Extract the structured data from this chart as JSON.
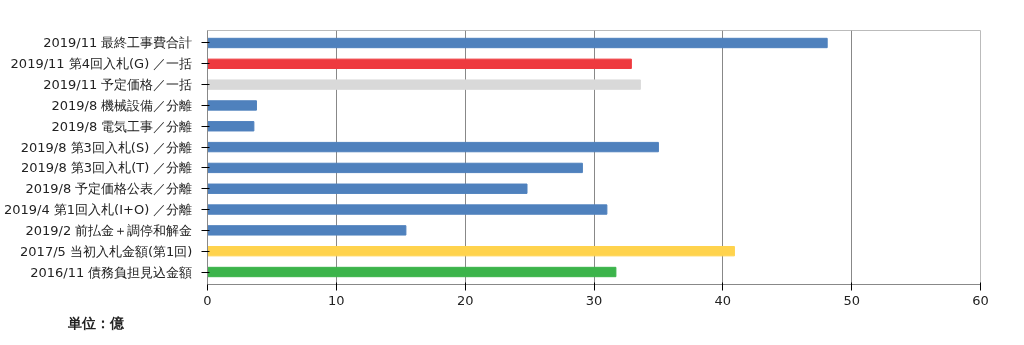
{
  "chart_data": {
    "type": "bar",
    "orientation": "horizontal",
    "categories": [
      "2019/11  最終工事費合計",
      "2019/11  第4回入札(G) ／一括",
      "2019/11  予定価格／一括",
      "2019/8  機械設備／分離",
      "2019/8  電気工事／分離",
      "2019/8  第3回入札(S) ／分離",
      "2019/8  第3回入札(T) ／分離",
      "2019/8  予定価格公表／分離",
      "2019/4  第1回入札(I+O) ／分離",
      "2019/2  前払金＋調停和解金",
      "2017/5  当初入札金額(第1回)",
      "2016/11  債務負担見込金額"
    ],
    "values": [
      48.1,
      32.9,
      33.6,
      3.8,
      3.6,
      35.0,
      29.1,
      24.8,
      31.0,
      15.4,
      40.9,
      31.7
    ],
    "colors": [
      "#4f81bd",
      "#ee3a3f",
      "#d9d9d9",
      "#4f81bd",
      "#4f81bd",
      "#4f81bd",
      "#4f81bd",
      "#4f81bd",
      "#4f81bd",
      "#4f81bd",
      "#ffd34d",
      "#3cb44b"
    ],
    "xlim": [
      0,
      60
    ],
    "xticks": [
      0,
      10,
      20,
      30,
      40,
      50,
      60
    ],
    "grid": "x",
    "annotations": [
      "単位：億"
    ]
  }
}
